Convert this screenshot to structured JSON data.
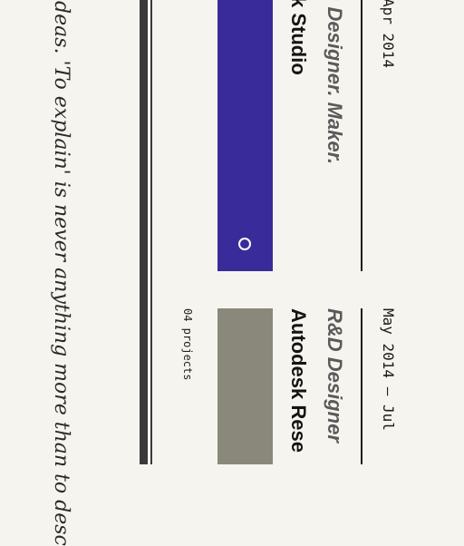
{
  "quote": {
    "text": "ideas. 'To explain' is never anything more than to desc"
  },
  "projects": [
    {
      "date": "Apr 2014",
      "role": ": Designer. Maker.",
      "company": "k Studio",
      "color": "#3a2b9a"
    },
    {
      "date": "May 2014 — Jul",
      "role": "R&D Designer",
      "company": "Autodesk Rese",
      "color": "#8a887b",
      "stat": "04 projects"
    }
  ]
}
